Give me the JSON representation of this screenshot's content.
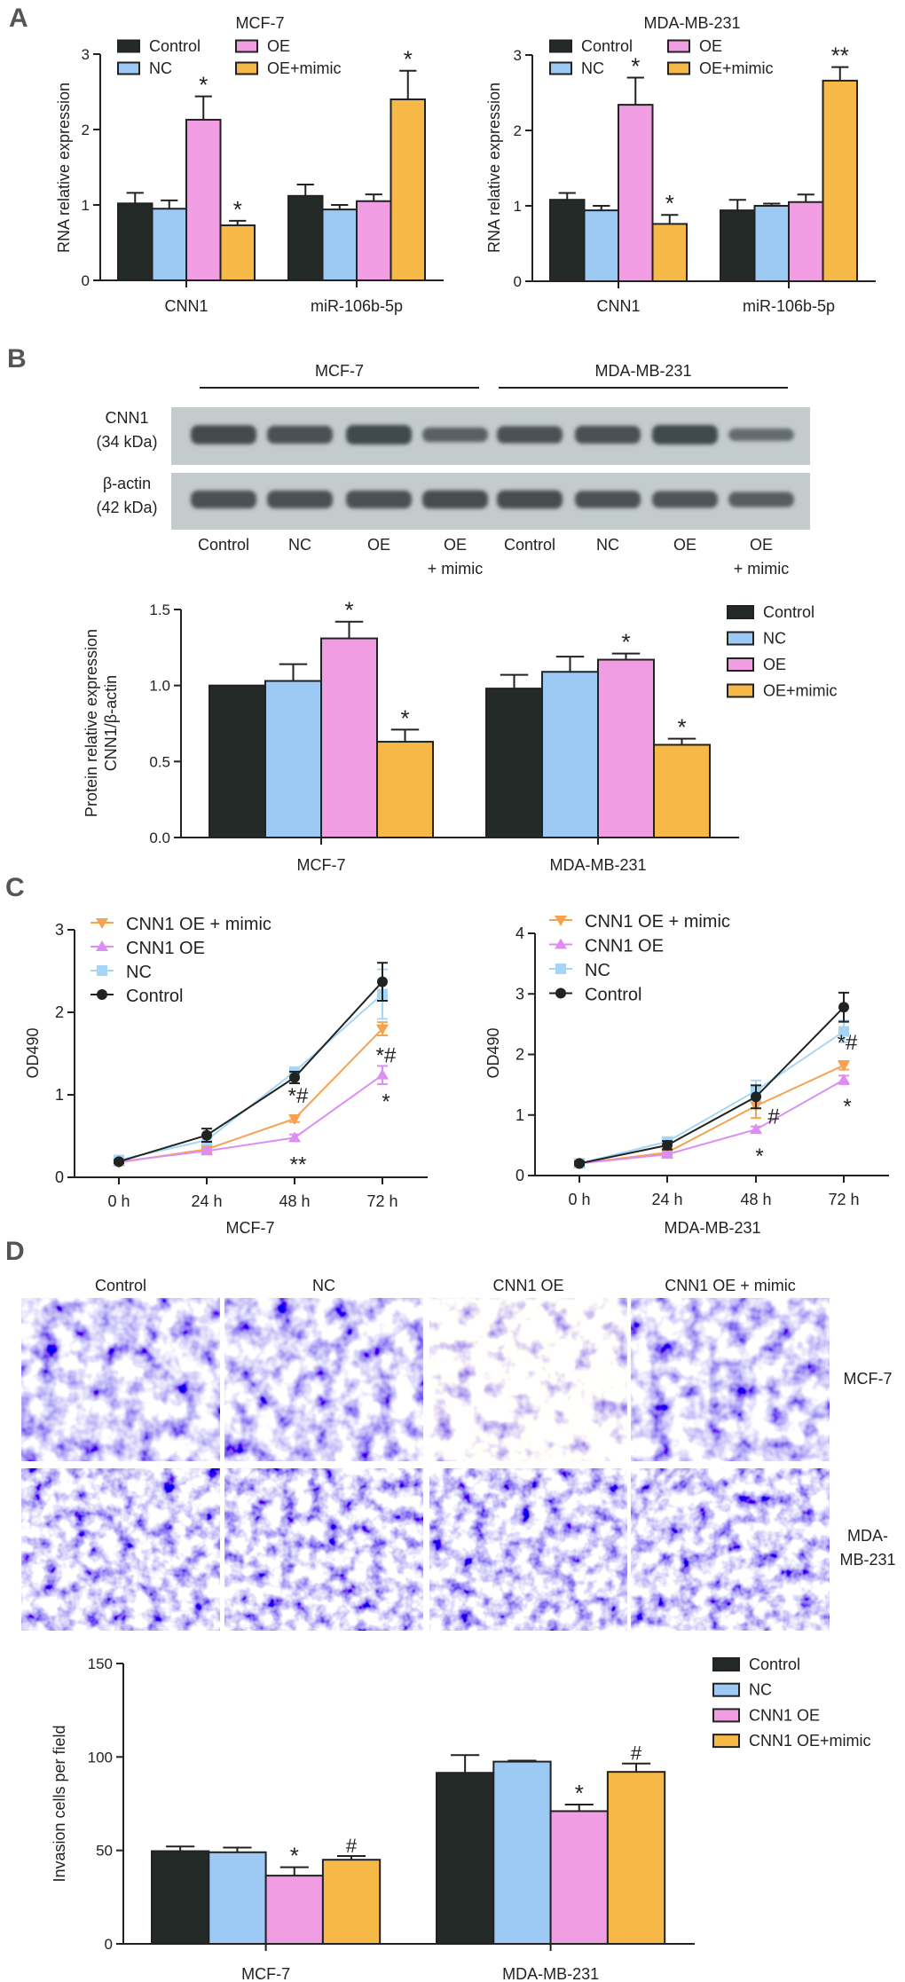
{
  "panel_labels": [
    "A",
    "B",
    "C",
    "D"
  ],
  "blot": {
    "groups": [
      "MCF-7",
      "MDA-MB-231"
    ],
    "bands": [
      {
        "name": "CNN1",
        "size": "(34 kDa)"
      },
      {
        "name": "β-actin",
        "size": "(42 kDa)"
      }
    ],
    "lanes": [
      [
        "Control"
      ],
      [
        "NC"
      ],
      [
        "OE"
      ],
      [
        "OE",
        "+ mimic"
      ],
      [
        "Control"
      ],
      [
        "NC"
      ],
      [
        "OE"
      ],
      [
        "OE",
        "+ mimic"
      ]
    ]
  },
  "micrographs": {
    "columns": [
      "Control",
      "NC",
      "CNN1 OE",
      "CNN1 OE + mimic"
    ],
    "rows": [
      [
        "MCF-7"
      ],
      [
        "MDA-",
        "MB-231"
      ]
    ]
  },
  "chart_data": [
    {
      "type": "bar",
      "title": "MCF-7",
      "ylabel": [
        "RNA relative expression"
      ],
      "categories": [
        "CNN1",
        "miR-106b-5p"
      ],
      "ylim": [
        0,
        3
      ],
      "yticks": [
        "0",
        "1",
        "2",
        "3"
      ],
      "legend": "top-left",
      "series": [
        {
          "name": "Control",
          "color": "#232a27",
          "values": [
            1.02,
            1.12
          ],
          "errors": [
            0.14,
            0.15
          ],
          "marks": [
            "",
            ""
          ]
        },
        {
          "name": "NC",
          "color": "#9dcaf4",
          "values": [
            0.95,
            0.94
          ],
          "errors": [
            0.11,
            0.06
          ],
          "marks": [
            "",
            ""
          ]
        },
        {
          "name": "OE",
          "color": "#f19de3",
          "values": [
            2.13,
            1.05
          ],
          "errors": [
            0.31,
            0.09
          ],
          "marks": [
            "*",
            ""
          ]
        },
        {
          "name": "OE+mimic",
          "color": "#f6b846",
          "values": [
            0.73,
            2.4
          ],
          "errors": [
            0.06,
            0.38
          ],
          "marks": [
            "*",
            "*"
          ]
        }
      ]
    },
    {
      "type": "bar",
      "title": "MDA-MB-231",
      "ylabel": [
        "RNA relative expression"
      ],
      "categories": [
        "CNN1",
        "miR-106b-5p"
      ],
      "ylim": [
        0,
        3
      ],
      "yticks": [
        "0",
        "1",
        "2",
        "3"
      ],
      "legend": "top-left",
      "series": [
        {
          "name": "Control",
          "color": "#232a27",
          "values": [
            1.08,
            0.94
          ],
          "errors": [
            0.09,
            0.14
          ],
          "marks": [
            "",
            ""
          ]
        },
        {
          "name": "NC",
          "color": "#9dcaf4",
          "values": [
            0.94,
            1.0
          ],
          "errors": [
            0.06,
            0.03
          ],
          "marks": [
            "",
            ""
          ]
        },
        {
          "name": "OE",
          "color": "#f19de3",
          "values": [
            2.34,
            1.05
          ],
          "errors": [
            0.36,
            0.1
          ],
          "marks": [
            "*",
            ""
          ]
        },
        {
          "name": "OE+mimic",
          "color": "#f6b846",
          "values": [
            0.76,
            2.66
          ],
          "errors": [
            0.12,
            0.18
          ],
          "marks": [
            "*",
            "**"
          ]
        }
      ]
    },
    {
      "type": "bar",
      "title": "",
      "ylabel": [
        "Protein relative expression",
        "CNN1/β-actin"
      ],
      "categories": [
        "MCF-7",
        "MDA-MB-231"
      ],
      "ylim": [
        0,
        1.5
      ],
      "yticks": [
        "0.0",
        "0.5",
        "1.0",
        "1.5"
      ],
      "legend": "right",
      "series": [
        {
          "name": "Control",
          "color": "#232a27",
          "values": [
            1.0,
            0.98
          ],
          "errors": [
            0,
            0.09
          ],
          "marks": [
            "",
            ""
          ]
        },
        {
          "name": "NC",
          "color": "#9dcaf4",
          "values": [
            1.03,
            1.09
          ],
          "errors": [
            0.11,
            0.1
          ],
          "marks": [
            "",
            ""
          ]
        },
        {
          "name": "OE",
          "color": "#f19de3",
          "values": [
            1.31,
            1.17
          ],
          "errors": [
            0.11,
            0.04
          ],
          "marks": [
            "*",
            "*"
          ]
        },
        {
          "name": "OE+mimic",
          "color": "#f6b846",
          "values": [
            0.63,
            0.61
          ],
          "errors": [
            0.08,
            0.04
          ],
          "marks": [
            "*",
            "*"
          ]
        }
      ]
    },
    {
      "type": "line",
      "xlabel": "MCF-7",
      "ylabel": "OD490",
      "x": [
        "0 h",
        "24 h",
        "48 h",
        "72 h"
      ],
      "ylim": [
        0,
        3
      ],
      "yticks": [
        "0",
        "1",
        "2",
        "3"
      ],
      "legend": "top-left",
      "series": [
        {
          "name": "CNN1 OE + mimic",
          "color": "#f7a24f",
          "marker": "triangle-down",
          "values": [
            0.18,
            0.34,
            0.71,
            1.8
          ],
          "errors": [
            0.02,
            0.03,
            0.04,
            0.08
          ]
        },
        {
          "name": "CNN1 OE",
          "color": "#de8ef2",
          "marker": "triangle-up",
          "values": [
            0.19,
            0.32,
            0.48,
            1.24
          ],
          "errors": [
            0.02,
            0.03,
            0.04,
            0.11
          ]
        },
        {
          "name": "NC",
          "color": "#a6d6f7",
          "marker": "square",
          "values": [
            0.21,
            0.45,
            1.28,
            2.22
          ],
          "errors": [
            0.03,
            0.05,
            0.05,
            0.3
          ]
        },
        {
          "name": "Control",
          "color": "#1f2422",
          "marker": "circle",
          "values": [
            0.19,
            0.51,
            1.21,
            2.37
          ],
          "errors": [
            0.02,
            0.08,
            0.07,
            0.23
          ]
        }
      ],
      "annotations": [
        {
          "series": 0,
          "x": 2,
          "text": "*#",
          "position": "above"
        },
        {
          "series": 1,
          "x": 2,
          "text": "**",
          "position": "below"
        },
        {
          "series": 0,
          "x": 3,
          "text": "*#",
          "position": "below"
        },
        {
          "series": 1,
          "x": 3,
          "text": "*",
          "position": "below"
        }
      ]
    },
    {
      "type": "line",
      "xlabel": "MDA-MB-231",
      "ylabel": "OD490",
      "x": [
        "0 h",
        "24 h",
        "48 h",
        "72 h"
      ],
      "ylim": [
        0,
        4
      ],
      "yticks": [
        "0",
        "1",
        "2",
        "3",
        "4"
      ],
      "legend": "top-left",
      "series": [
        {
          "name": "CNN1 OE + mimic",
          "color": "#f7a24f",
          "marker": "triangle-down",
          "values": [
            0.2,
            0.38,
            1.15,
            1.82
          ],
          "errors": [
            0.03,
            0.03,
            0.2,
            0.07
          ]
        },
        {
          "name": "CNN1 OE",
          "color": "#de8ef2",
          "marker": "triangle-up",
          "values": [
            0.2,
            0.35,
            0.76,
            1.58
          ],
          "errors": [
            0.03,
            0.03,
            0.05,
            0.07
          ]
        },
        {
          "name": "NC",
          "color": "#a6d6f7",
          "marker": "square",
          "values": [
            0.2,
            0.56,
            1.4,
            2.38
          ],
          "errors": [
            0.03,
            0.04,
            0.17,
            0.18
          ]
        },
        {
          "name": "Control",
          "color": "#1f2422",
          "marker": "circle",
          "values": [
            0.2,
            0.5,
            1.3,
            2.78
          ],
          "errors": [
            0.03,
            0.07,
            0.19,
            0.24
          ]
        }
      ],
      "annotations": [
        {
          "series": 0,
          "x": 2,
          "text": "#",
          "position": "right"
        },
        {
          "series": 1,
          "x": 2,
          "text": "*",
          "position": "below"
        },
        {
          "series": 0,
          "x": 3,
          "text": "*#",
          "position": "above"
        },
        {
          "series": 1,
          "x": 3,
          "text": "*",
          "position": "below"
        }
      ]
    },
    {
      "type": "bar",
      "title": "",
      "ylabel": [
        "Invasion cells per field"
      ],
      "categories": [
        "MCF-7",
        "MDA-MB-231"
      ],
      "ylim": [
        0,
        150
      ],
      "yticks": [
        "0",
        "50",
        "100",
        "150"
      ],
      "legend": "right",
      "series": [
        {
          "name": "Control",
          "color": "#232a27",
          "values": [
            49.6,
            91.5
          ],
          "errors": [
            2.5,
            9.5
          ],
          "marks": [
            "",
            ""
          ]
        },
        {
          "name": "NC",
          "color": "#9dcaf4",
          "values": [
            49,
            97.5
          ],
          "errors": [
            2.5,
            0.5
          ],
          "marks": [
            "",
            ""
          ]
        },
        {
          "name": "CNN1 OE",
          "color": "#f19de3",
          "values": [
            36.5,
            71
          ],
          "errors": [
            4.5,
            3.5
          ],
          "marks": [
            "*",
            "*"
          ]
        },
        {
          "name": "CNN1 OE+mimic",
          "color": "#f6b846",
          "values": [
            45,
            92
          ],
          "errors": [
            2,
            4.5
          ],
          "marks": [
            "#",
            "#"
          ]
        }
      ]
    }
  ]
}
